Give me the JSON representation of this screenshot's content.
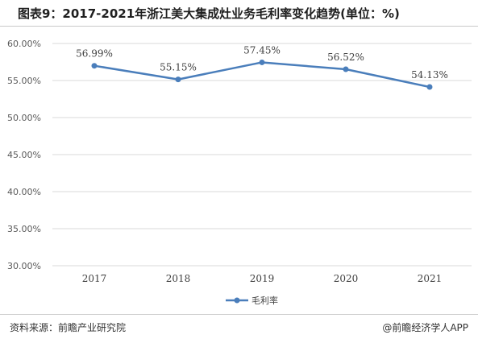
{
  "title": "图表9：2017-2021年浙江美大集成灶业务毛利率变化趋势(单位：%)",
  "footer": {
    "source": "资料来源：前瞻产业研究院",
    "brand": "@前瞻经济学人APP",
    "brand_icon": "wechat-logo-icon"
  },
  "colors": {
    "series": "#4a7ebb",
    "grid": "#d9d9d9"
  },
  "chart_data": {
    "type": "line",
    "title": "",
    "xlabel": "",
    "ylabel": "",
    "x": [
      "2017",
      "2018",
      "2019",
      "2020",
      "2021"
    ],
    "series": [
      {
        "name": "毛利率",
        "values": [
          56.99,
          55.15,
          57.45,
          56.52,
          54.13
        ],
        "labels": [
          "56.99%",
          "55.15%",
          "57.45%",
          "56.52%",
          "54.13%"
        ]
      }
    ],
    "ylim": [
      30,
      60
    ],
    "yticks": [
      "60.00%",
      "55.00%",
      "50.00%",
      "45.00%",
      "40.00%",
      "35.00%",
      "30.00%"
    ],
    "grid": true,
    "legend": "bottom-center"
  }
}
